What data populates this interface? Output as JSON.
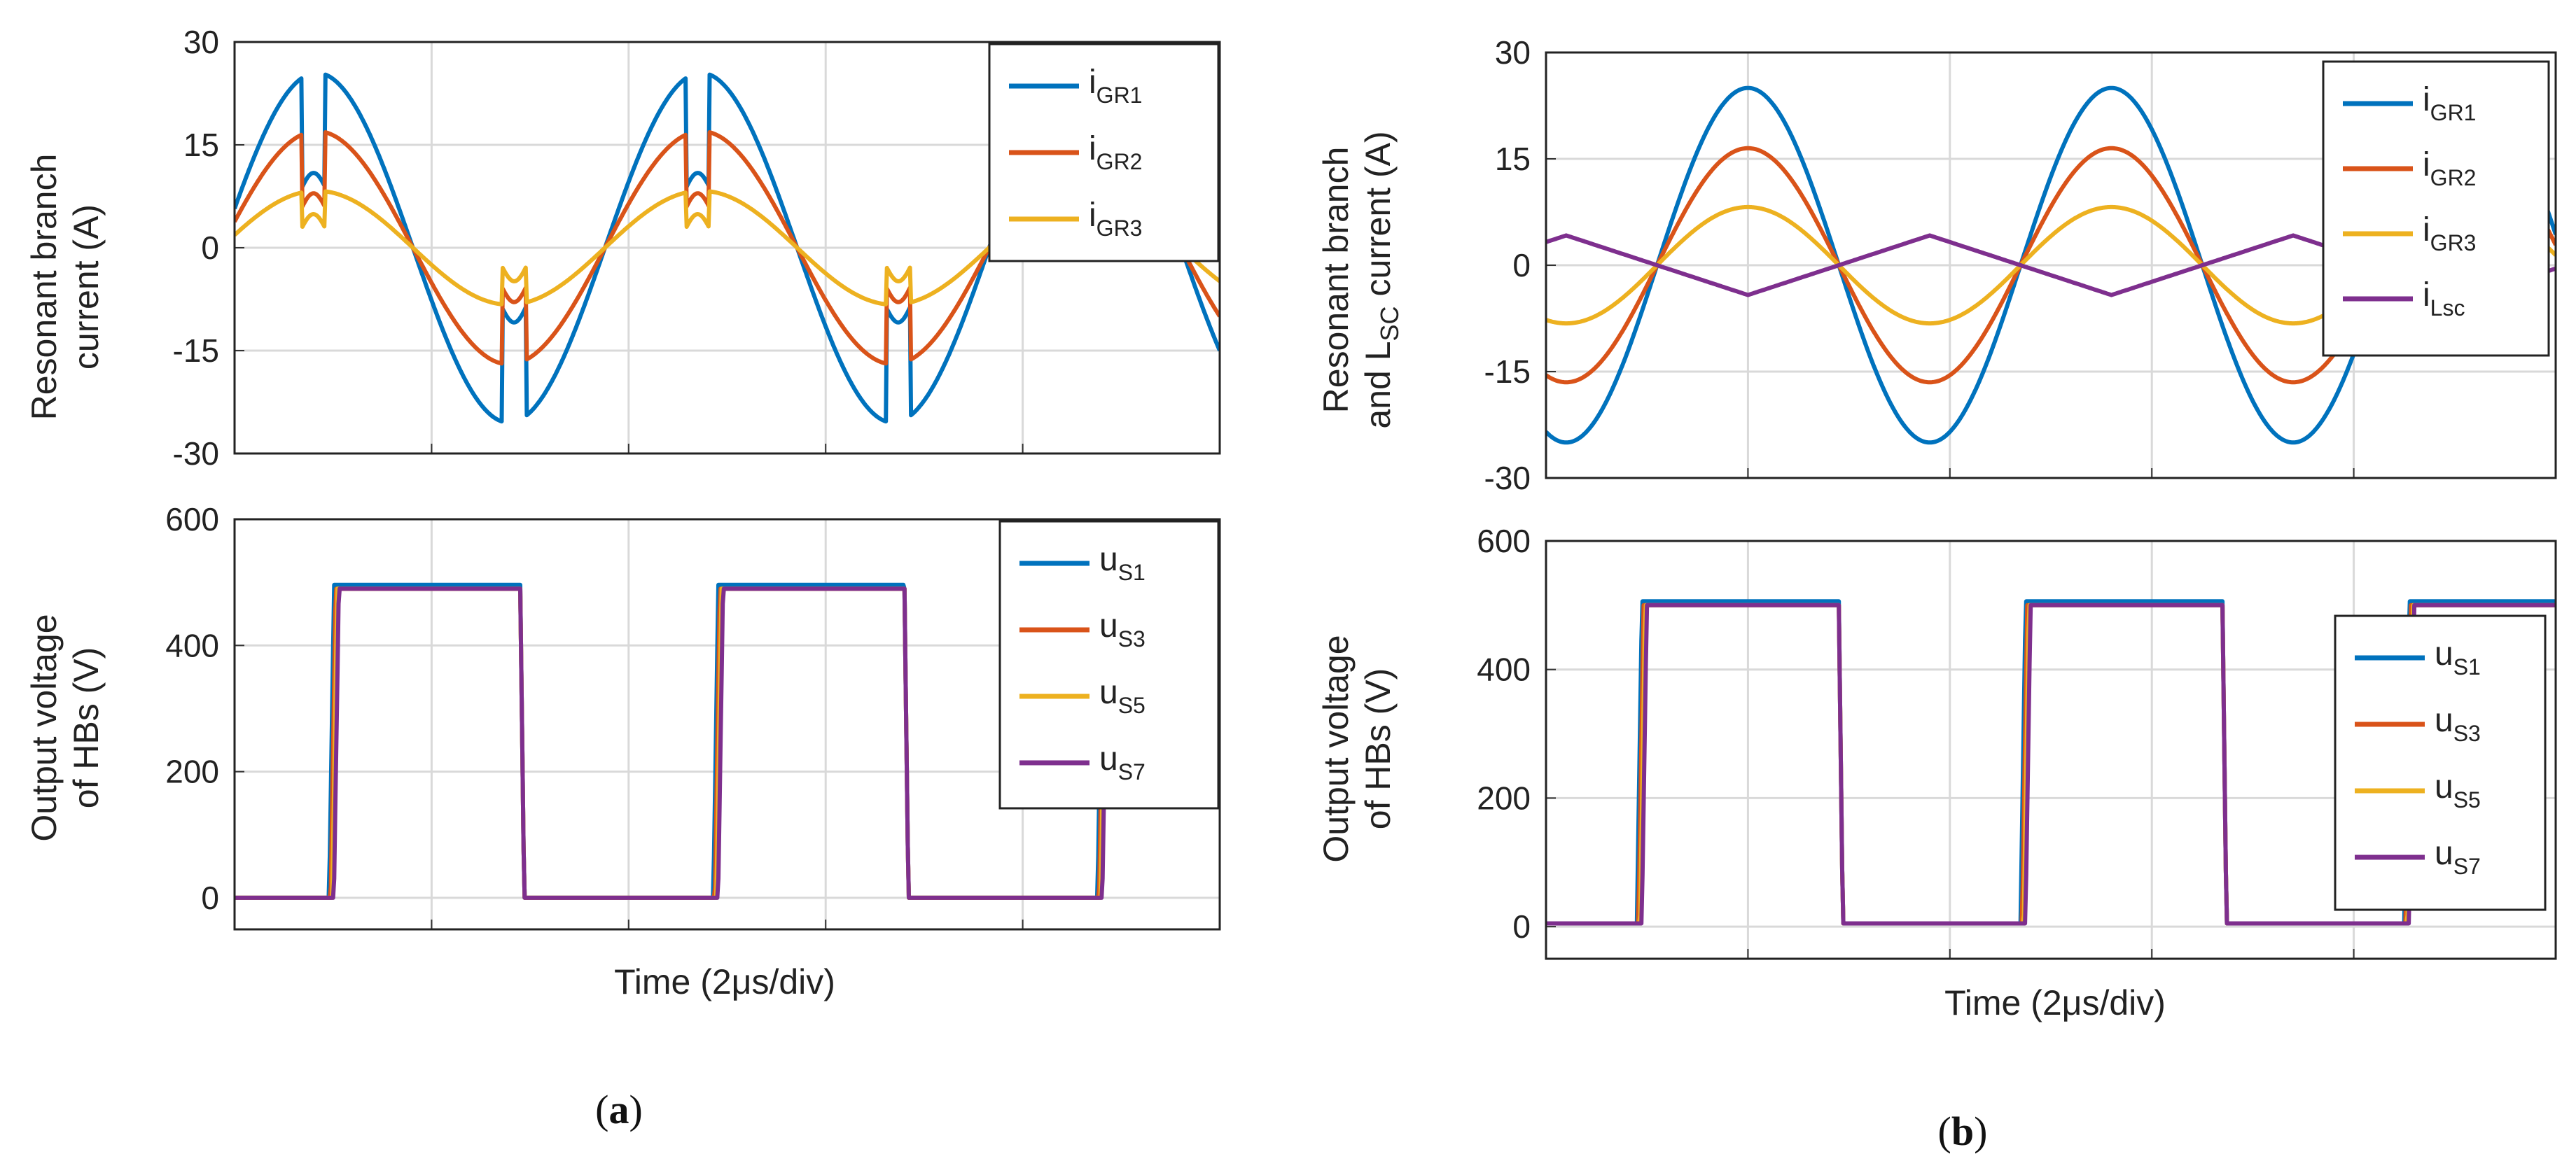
{
  "captions": {
    "a": "a",
    "b": "b"
  },
  "chart_data": [
    {
      "panel": "a-top",
      "type": "line",
      "ylabel_line1": "Resonant branch",
      "ylabel_line2": "current (A)",
      "xlabel": "",
      "ylim": [
        -30,
        30
      ],
      "yticks": [
        "-30",
        "-15",
        "0",
        "15",
        "30"
      ],
      "grid": true,
      "legend_position": "top-right",
      "waveform": "sine",
      "x_divisions": 5,
      "period_div": 1.95,
      "phase_div": -0.07,
      "notch_div": [
        0.4,
        1.42,
        2.35,
        3.37,
        4.3
      ],
      "series": [
        {
          "name": "i",
          "sub": "GR1",
          "color": "#0072BD",
          "amplitude": 25.5
        },
        {
          "name": "i",
          "sub": "GR2",
          "color": "#D95319",
          "amplitude": 17
        },
        {
          "name": "i",
          "sub": "GR3",
          "color": "#EDB120",
          "amplitude": 8.3
        }
      ]
    },
    {
      "panel": "a-bottom",
      "type": "line",
      "ylabel_line1": "Output voltage",
      "ylabel_line2": "of HBs (V)",
      "xlabel": "Time (2μs/div)",
      "ylim": [
        -50,
        600
      ],
      "yticks": [
        "0",
        "200",
        "400",
        "600"
      ],
      "grid": true,
      "legend_position": "top-right",
      "waveform": "square",
      "x_divisions": 5,
      "high_intervals_div": [
        [
          0.48,
          1.45
        ],
        [
          2.43,
          3.4
        ],
        [
          4.38,
          5.35
        ]
      ],
      "high_value": 490,
      "low_value": 0,
      "series": [
        {
          "name": "u",
          "sub": "S1",
          "color": "#0072BD"
        },
        {
          "name": "u",
          "sub": "S3",
          "color": "#D95319"
        },
        {
          "name": "u",
          "sub": "S5",
          "color": "#EDB120"
        },
        {
          "name": "u",
          "sub": "S7",
          "color": "#7E2F8E"
        }
      ]
    },
    {
      "panel": "b-top",
      "type": "line",
      "ylabel_line1": "Resonant branch",
      "ylabel_line2_pre": "and L",
      "ylabel_line2_sub": "SC",
      "ylabel_line2_post": " current (A)",
      "xlabel": "",
      "ylim": [
        -30,
        30
      ],
      "yticks": [
        "-30",
        "-15",
        "0",
        "15",
        "30"
      ],
      "grid": true,
      "legend_position": "top-right",
      "waveform": "sine",
      "x_divisions": 5,
      "period_div": 1.8,
      "phase_div": 0.55,
      "series": [
        {
          "name": "i",
          "sub": "GR1",
          "color": "#0072BD",
          "amplitude": 25
        },
        {
          "name": "i",
          "sub": "GR2",
          "color": "#D95319",
          "amplitude": 16.5
        },
        {
          "name": "i",
          "sub": "GR3",
          "color": "#EDB120",
          "amplitude": 8.2
        },
        {
          "name": "i",
          "sub": "Lsc",
          "color": "#7E2F8E",
          "amplitude": 4.2,
          "shape": "triangle"
        }
      ]
    },
    {
      "panel": "b-bottom",
      "type": "line",
      "ylabel_line1": "Output voltage",
      "ylabel_line2": "of HBs (V)",
      "xlabel": "Time (2μs/div)",
      "ylim": [
        -50,
        600
      ],
      "yticks": [
        "0",
        "200",
        "400",
        "600"
      ],
      "grid": true,
      "legend_position": "right",
      "waveform": "square",
      "x_divisions": 5,
      "high_intervals_div": [
        [
          0.45,
          1.45
        ],
        [
          2.35,
          3.35
        ],
        [
          4.25,
          5.2
        ]
      ],
      "high_value": 500,
      "low_value": 5,
      "series": [
        {
          "name": "u",
          "sub": "S1",
          "color": "#0072BD"
        },
        {
          "name": "u",
          "sub": "S3",
          "color": "#D95319"
        },
        {
          "name": "u",
          "sub": "S5",
          "color": "#EDB120"
        },
        {
          "name": "u",
          "sub": "S7",
          "color": "#7E2F8E"
        }
      ]
    }
  ]
}
